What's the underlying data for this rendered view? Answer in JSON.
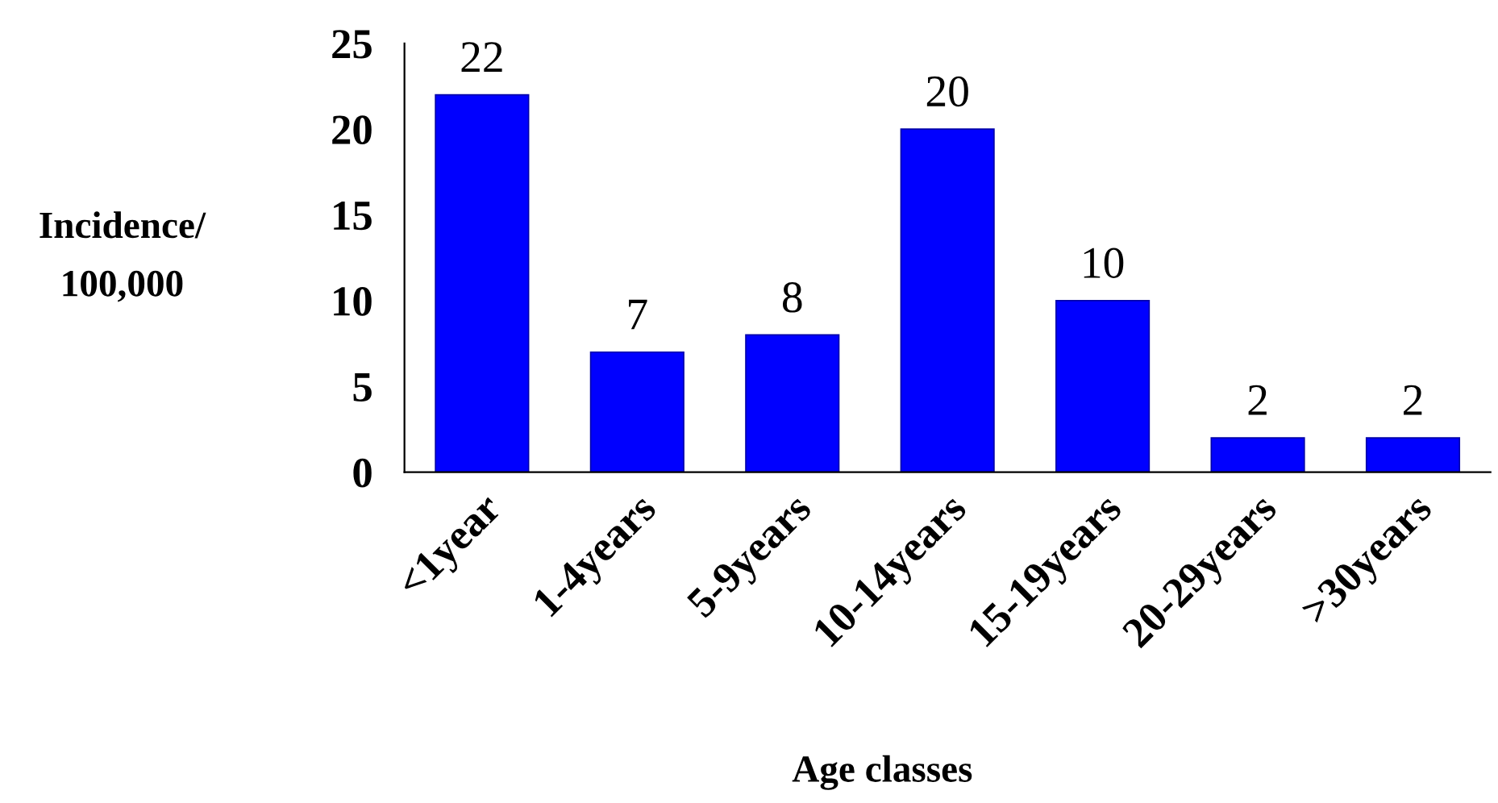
{
  "chart_data": {
    "type": "bar",
    "xlabel": "Age classes",
    "ylabel": "Incidence/\n100,000",
    "categories": [
      "<1year",
      "1-4years",
      "5-9years",
      "10-14years",
      "15-19years",
      "20-29years",
      ">30years"
    ],
    "values": [
      22,
      7,
      8,
      20,
      10,
      2,
      2
    ],
    "color": "#0000ff",
    "ylim": [
      0,
      25
    ],
    "yticks": [
      0,
      5,
      10,
      15,
      20,
      25
    ],
    "grid": false,
    "data_labels": true
  }
}
